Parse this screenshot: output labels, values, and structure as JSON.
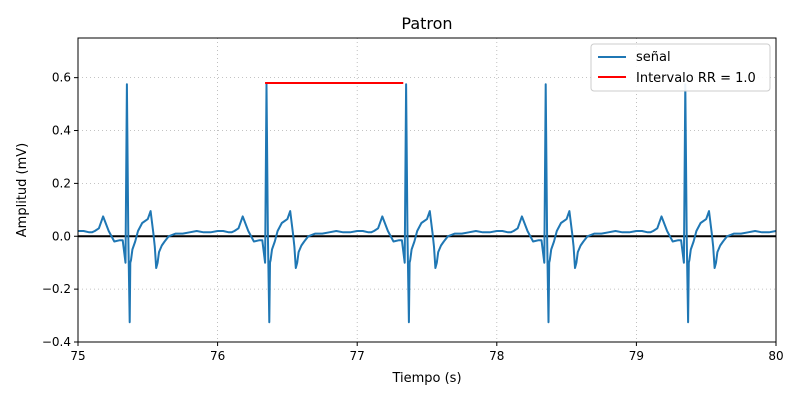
{
  "chart_data": {
    "type": "line",
    "title": "Patron",
    "xlabel": "Tiempo (s)",
    "ylabel": "Amplitud (mV)",
    "xlim": [
      75,
      80
    ],
    "ylim": [
      -0.4,
      0.75
    ],
    "xticks": [
      75,
      76,
      77,
      78,
      79,
      80
    ],
    "xtick_labels": [
      "75",
      "76",
      "77",
      "78",
      "79",
      "80"
    ],
    "yticks": [
      -0.4,
      -0.2,
      0.0,
      0.2,
      0.4,
      0.6
    ],
    "ytick_labels": [
      "−0.4",
      "−0.2",
      "0.0",
      "0.2",
      "0.4",
      "0.6"
    ],
    "grid": true,
    "legend_position": "top-right",
    "colors": {
      "signal": "#1f77b4",
      "rr": "#ff0000",
      "baseline": "#000000"
    },
    "series": [
      {
        "name": "señal",
        "beat_starts": [
          75,
          76,
          77,
          78,
          79
        ],
        "beat_template_x": [
          0.0,
          0.04,
          0.08,
          0.1,
          0.12,
          0.15,
          0.18,
          0.22,
          0.26,
          0.3,
          0.32,
          0.34,
          0.35,
          0.36,
          0.37,
          0.375,
          0.38,
          0.39,
          0.41,
          0.43,
          0.46,
          0.5,
          0.52,
          0.54,
          0.55,
          0.56,
          0.57,
          0.58,
          0.6,
          0.62,
          0.65,
          0.7,
          0.75,
          0.8,
          0.85,
          0.9,
          0.95,
          1.0
        ],
        "beat_template_y": [
          0.02,
          0.02,
          0.015,
          0.015,
          0.02,
          0.03,
          0.075,
          0.02,
          -0.02,
          -0.015,
          -0.015,
          -0.1,
          0.575,
          0.0,
          -0.325,
          -0.1,
          -0.09,
          -0.05,
          -0.02,
          0.02,
          0.05,
          0.065,
          0.095,
          0.01,
          -0.04,
          -0.12,
          -0.1,
          -0.06,
          -0.035,
          -0.02,
          0.0,
          0.01,
          0.01,
          0.015,
          0.02,
          0.015,
          0.015,
          0.02
        ]
      },
      {
        "name": "Intervalo RR = 1.0",
        "x": [
          76.34,
          77.33
        ],
        "y": [
          0.58,
          0.58
        ]
      }
    ],
    "hline": 0.0
  }
}
